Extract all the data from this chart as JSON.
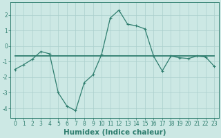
{
  "xlabel": "Humidex (Indice chaleur)",
  "x_ticks": [
    0,
    1,
    2,
    3,
    4,
    5,
    6,
    7,
    8,
    9,
    10,
    11,
    12,
    13,
    14,
    15,
    16,
    17,
    18,
    19,
    20,
    21,
    22,
    23
  ],
  "xlim": [
    -0.5,
    23.5
  ],
  "ylim": [
    -4.6,
    2.8
  ],
  "y_ticks": [
    -4,
    -3,
    -2,
    -1,
    0,
    1,
    2
  ],
  "line1_x": [
    0,
    1,
    2,
    3,
    4,
    5,
    6,
    7,
    8,
    9,
    10,
    11,
    12,
    13,
    14,
    15,
    16,
    17,
    18,
    19,
    20,
    21,
    22,
    23
  ],
  "line1_y": [
    -1.5,
    -1.2,
    -0.85,
    -0.35,
    -0.5,
    -3.0,
    -3.85,
    -4.15,
    -2.35,
    -1.85,
    -0.55,
    1.8,
    2.3,
    1.4,
    1.3,
    1.1,
    -0.65,
    -1.6,
    -0.65,
    -0.75,
    -0.8,
    -0.65,
    -0.7,
    -1.3
  ],
  "line2_x": [
    0,
    23
  ],
  "line2_y": [
    -0.65,
    -0.65
  ],
  "line_color": "#2e7d6e",
  "bg_color": "#cce8e4",
  "grid_color": "#aacfcc",
  "tick_fontsize": 5.5,
  "label_fontsize": 7.5
}
